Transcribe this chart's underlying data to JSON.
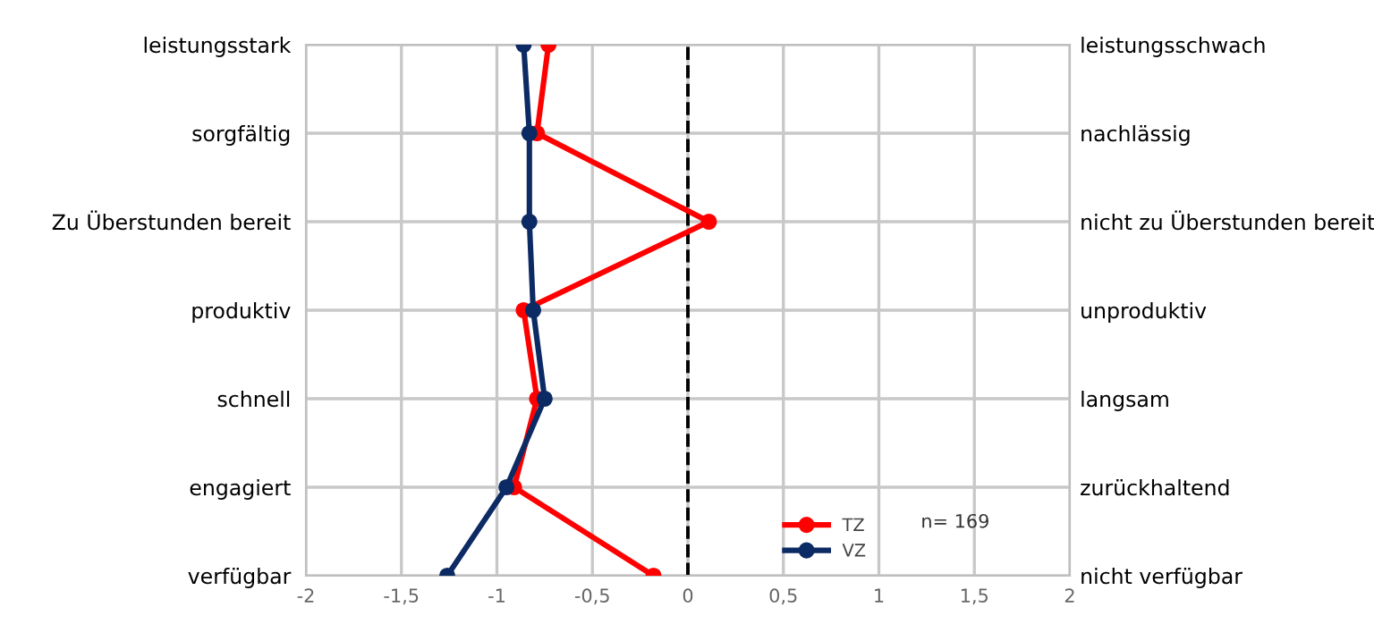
{
  "chart_data": {
    "type": "line",
    "orientation": "horizontal",
    "categories": [
      "leistungsstark",
      "sorgfältig",
      "Zu Überstunden bereit",
      "produktiv",
      "schnell",
      "engagiert",
      "verfügbar"
    ],
    "y2_categories": [
      "leistungsschwach",
      "nachlässig",
      "nicht zu Überstunden bereit",
      "unproduktiv",
      "langsam",
      "zurückhaltend",
      "nicht verfügbar"
    ],
    "series": [
      {
        "name": "TZ",
        "color": "#ff0000",
        "values": [
          -0.73,
          -0.79,
          0.11,
          -0.86,
          -0.79,
          -0.91,
          -0.18
        ]
      },
      {
        "name": "VZ",
        "color": "#0c2a63",
        "values": [
          -0.86,
          -0.83,
          -0.83,
          -0.81,
          -0.75,
          -0.95,
          -1.26
        ]
      }
    ],
    "xlim": [
      -2,
      2
    ],
    "xticks": [
      -2,
      {
        "value": -1.5,
        "label": "-1,5"
      },
      -1,
      {
        "value": -0.5,
        "label": "-0,5"
      },
      0,
      {
        "value": 0.5,
        "label": "0,5"
      },
      1,
      {
        "value": 1.5,
        "label": "1,5"
      },
      2
    ],
    "ref_lines": [
      {
        "axis": "x",
        "value": 0,
        "color": "#000000",
        "line_style": "dashed"
      }
    ],
    "annotations": [
      "n= 169"
    ],
    "grid": true,
    "legend": "bottom",
    "marker": "circle",
    "line_style": "solid"
  }
}
